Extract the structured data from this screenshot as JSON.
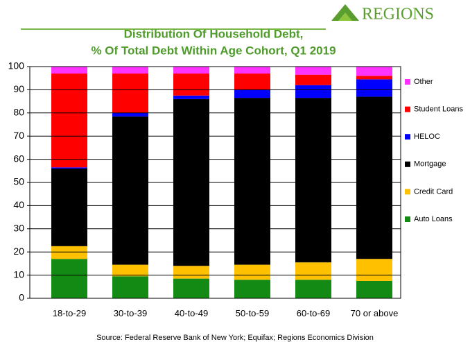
{
  "brand": "REGIONS",
  "chart_data": {
    "type": "stacked_bar",
    "title": "Distribution Of Household Debt,",
    "subtitle": "% Of Total Debt Within Age Cohort, Q1 2019",
    "categories": [
      "18-to-29",
      "30-to-39",
      "40-to-49",
      "50-to-59",
      "60-to-69",
      "70 or above"
    ],
    "series": [
      {
        "name": "Auto Loans",
        "color": "#138a13",
        "values": [
          17,
          9.5,
          8.5,
          8,
          8,
          7.5
        ]
      },
      {
        "name": "Credit Card",
        "color": "#ffc000",
        "values": [
          5.5,
          5,
          5.5,
          6.5,
          7.5,
          9.5
        ]
      },
      {
        "name": "Mortgage",
        "color": "#000000",
        "values": [
          33.5,
          64,
          72,
          72,
          71,
          70
        ]
      },
      {
        "name": "HELOC",
        "color": "#0000ff",
        "values": [
          0.5,
          1.5,
          1.5,
          3.5,
          5.5,
          7.5
        ]
      },
      {
        "name": "Student Loans",
        "color": "#ff0000",
        "values": [
          40.5,
          17,
          9.5,
          7,
          4.5,
          1.5
        ]
      },
      {
        "name": "Other",
        "color": "#ff33ff",
        "values": [
          3,
          3,
          3,
          3,
          3.5,
          4
        ]
      }
    ],
    "ylim": [
      0,
      100
    ],
    "yticks": [
      0,
      10,
      20,
      30,
      40,
      50,
      60,
      70,
      80,
      90,
      100
    ],
    "grid": true,
    "source": "Source: Federal Reserve Bank of New York; Equifax; Regions Economics Division"
  }
}
